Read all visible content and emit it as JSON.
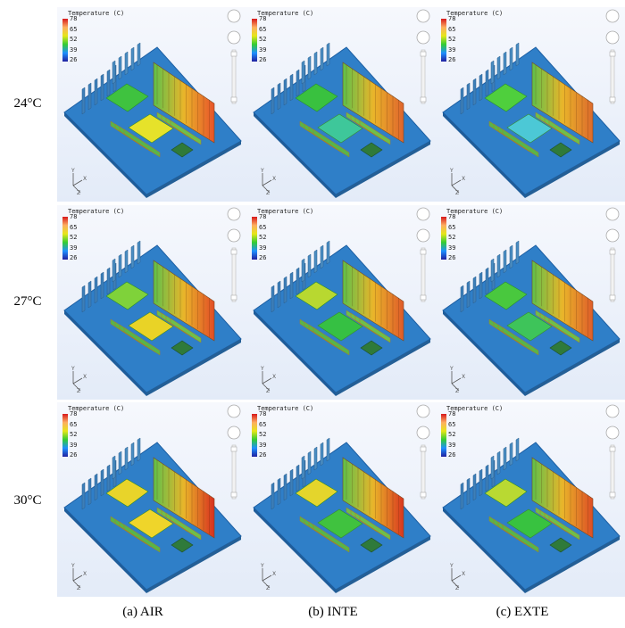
{
  "rows": [
    "24°C",
    "27°C",
    "30°C"
  ],
  "columns": [
    "(a) AIR",
    "(b) INTE",
    "(c) EXTE"
  ],
  "legend": {
    "title": "Temperature (C)",
    "ticks": [
      "78",
      "65",
      "52",
      "39",
      "26"
    ]
  },
  "axis_letters": {
    "y": "Y",
    "x": "X",
    "z": "Z"
  },
  "colors": {
    "board": "#2f7fc8",
    "hot": "#d7301f",
    "warm": "#f0c020",
    "mid": "#44c14a",
    "cool": "#1e90ff"
  },
  "panels": [
    {
      "row": 0,
      "col": 0,
      "chip_top": "#3fc23f",
      "chip_bottom": "#e6e22a",
      "fins_right": "#e8542a"
    },
    {
      "row": 0,
      "col": 1,
      "chip_top": "#39c13f",
      "chip_bottom": "#3ec79a",
      "fins_right": "#e0642c"
    },
    {
      "row": 0,
      "col": 2,
      "chip_top": "#4fcf3d",
      "chip_bottom": "#4cc8d6",
      "fins_right": "#dd6a2c"
    },
    {
      "row": 1,
      "col": 0,
      "chip_top": "#7fd23a",
      "chip_bottom": "#e9d326",
      "fins_right": "#e24d26"
    },
    {
      "row": 1,
      "col": 1,
      "chip_top": "#b8d830",
      "chip_bottom": "#36c043",
      "fins_right": "#df5a29"
    },
    {
      "row": 1,
      "col": 2,
      "chip_top": "#49c83e",
      "chip_bottom": "#3ec45a",
      "fins_right": "#df5d2a"
    },
    {
      "row": 2,
      "col": 0,
      "chip_top": "#e8d42a",
      "chip_bottom": "#efd52a",
      "fins_right": "#d8301f"
    },
    {
      "row": 2,
      "col": 1,
      "chip_top": "#e4d52c",
      "chip_bottom": "#40c23f",
      "fins_right": "#d9361f"
    },
    {
      "row": 2,
      "col": 2,
      "chip_top": "#b9d932",
      "chip_bottom": "#38c240",
      "fins_right": "#dd4d25"
    }
  ]
}
